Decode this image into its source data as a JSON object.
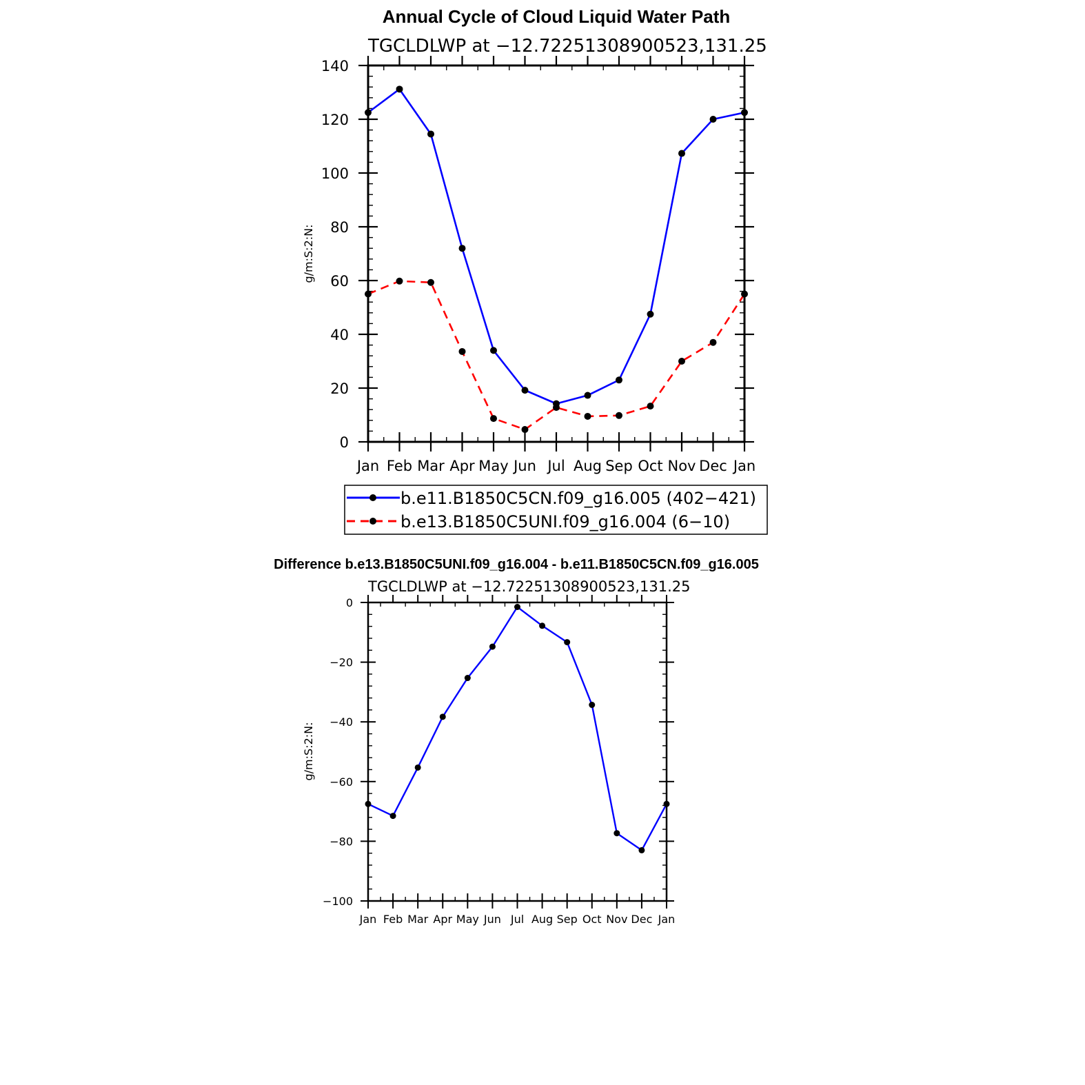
{
  "chart_data": [
    {
      "type": "line",
      "title": "Annual Cycle of Cloud Liquid Water Path",
      "subtitle": "TGCLDLWP at −12.72251308900523,131.25",
      "xlabel": "",
      "ylabel": "g/m:S:2:N:",
      "categories": [
        "Jan",
        "Feb",
        "Mar",
        "Apr",
        "May",
        "Jun",
        "Jul",
        "Aug",
        "Sep",
        "Oct",
        "Nov",
        "Dec",
        "Jan"
      ],
      "ylim": [
        0,
        140
      ],
      "yticks": [
        0,
        20,
        40,
        60,
        80,
        100,
        120,
        140
      ],
      "ytick_labels": [
        "0",
        "20",
        "40",
        "60",
        "80",
        "100",
        "120",
        "140"
      ],
      "legend_position": "bottom",
      "series": [
        {
          "name": "b.e11.B1850C5CN.f09_g16.005 (402−421)",
          "color": "#0000ff",
          "style": "solid",
          "values": [
            122.5,
            131.2,
            114.5,
            72.0,
            34.0,
            19.2,
            14.2,
            17.3,
            23.0,
            47.5,
            107.3,
            120.0,
            122.5
          ]
        },
        {
          "name": "b.e13.B1850C5UNI.f09_g16.004 (6−10)",
          "color": "#ff0000",
          "style": "dashed",
          "values": [
            55.0,
            59.8,
            59.3,
            33.6,
            8.7,
            4.6,
            12.8,
            9.5,
            9.8,
            13.3,
            30.0,
            37.0,
            55.0
          ]
        }
      ]
    },
    {
      "type": "line",
      "title": "Difference b.e13.B1850C5UNI.f09_g16.004 - b.e11.B1850C5CN.f09_g16.005",
      "subtitle": "TGCLDLWP at −12.72251308900523,131.25",
      "xlabel": "",
      "ylabel": "g/m:S:2:N:",
      "categories": [
        "Jan",
        "Feb",
        "Mar",
        "Apr",
        "May",
        "Jun",
        "Jul",
        "Aug",
        "Sep",
        "Oct",
        "Nov",
        "Dec",
        "Jan"
      ],
      "ylim": [
        -100,
        0
      ],
      "yticks": [
        0,
        -20,
        -40,
        -60,
        -80,
        -100
      ],
      "ytick_labels": [
        "0",
        "−20",
        "−40",
        "−60",
        "−80",
        "−100"
      ],
      "series": [
        {
          "name": "Difference",
          "color": "#0000ff",
          "style": "solid",
          "values": [
            -67.5,
            -71.5,
            -55.3,
            -38.3,
            -25.3,
            -14.8,
            -1.5,
            -7.8,
            -13.3,
            -34.3,
            -77.3,
            -83.0,
            -67.5
          ]
        }
      ]
    }
  ]
}
